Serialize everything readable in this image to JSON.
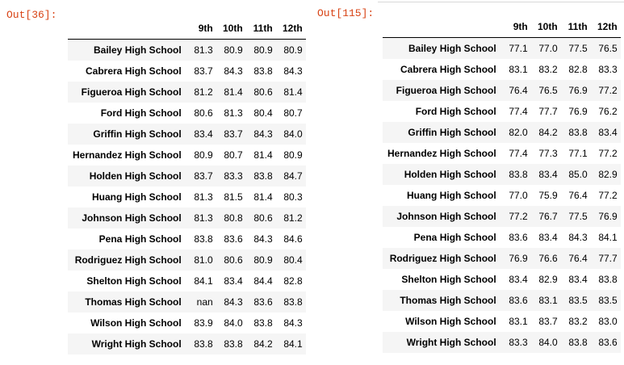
{
  "cells": [
    {
      "prompt": "Out[36]:",
      "columns": [
        "9th",
        "10th",
        "11th",
        "12th"
      ],
      "rows": [
        {
          "school": "Bailey High School",
          "values": [
            "81.3",
            "80.9",
            "80.9",
            "80.9"
          ]
        },
        {
          "school": "Cabrera High School",
          "values": [
            "83.7",
            "84.3",
            "83.8",
            "84.3"
          ]
        },
        {
          "school": "Figueroa High School",
          "values": [
            "81.2",
            "81.4",
            "80.6",
            "81.4"
          ]
        },
        {
          "school": "Ford High School",
          "values": [
            "80.6",
            "81.3",
            "80.4",
            "80.7"
          ]
        },
        {
          "school": "Griffin High School",
          "values": [
            "83.4",
            "83.7",
            "84.3",
            "84.0"
          ]
        },
        {
          "school": "Hernandez High School",
          "values": [
            "80.9",
            "80.7",
            "81.4",
            "80.9"
          ]
        },
        {
          "school": "Holden High School",
          "values": [
            "83.7",
            "83.3",
            "83.8",
            "84.7"
          ]
        },
        {
          "school": "Huang High School",
          "values": [
            "81.3",
            "81.5",
            "81.4",
            "80.3"
          ]
        },
        {
          "school": "Johnson High School",
          "values": [
            "81.3",
            "80.8",
            "80.6",
            "81.2"
          ]
        },
        {
          "school": "Pena High School",
          "values": [
            "83.8",
            "83.6",
            "84.3",
            "84.6"
          ]
        },
        {
          "school": "Rodriguez High School",
          "values": [
            "81.0",
            "80.6",
            "80.9",
            "80.4"
          ]
        },
        {
          "school": "Shelton High School",
          "values": [
            "84.1",
            "83.4",
            "84.4",
            "82.8"
          ]
        },
        {
          "school": "Thomas High School",
          "values": [
            "nan",
            "84.3",
            "83.6",
            "83.8"
          ]
        },
        {
          "school": "Wilson High School",
          "values": [
            "83.9",
            "84.0",
            "83.8",
            "84.3"
          ]
        },
        {
          "school": "Wright High School",
          "values": [
            "83.8",
            "83.8",
            "84.2",
            "84.1"
          ]
        }
      ]
    },
    {
      "prompt": "Out[115]:",
      "columns": [
        "9th",
        "10th",
        "11th",
        "12th"
      ],
      "rows": [
        {
          "school": "Bailey High School",
          "values": [
            "77.1",
            "77.0",
            "77.5",
            "76.5"
          ]
        },
        {
          "school": "Cabrera High School",
          "values": [
            "83.1",
            "83.2",
            "82.8",
            "83.3"
          ]
        },
        {
          "school": "Figueroa High School",
          "values": [
            "76.4",
            "76.5",
            "76.9",
            "77.2"
          ]
        },
        {
          "school": "Ford High School",
          "values": [
            "77.4",
            "77.7",
            "76.9",
            "76.2"
          ]
        },
        {
          "school": "Griffin High School",
          "values": [
            "82.0",
            "84.2",
            "83.8",
            "83.4"
          ]
        },
        {
          "school": "Hernandez High School",
          "values": [
            "77.4",
            "77.3",
            "77.1",
            "77.2"
          ]
        },
        {
          "school": "Holden High School",
          "values": [
            "83.8",
            "83.4",
            "85.0",
            "82.9"
          ]
        },
        {
          "school": "Huang High School",
          "values": [
            "77.0",
            "75.9",
            "76.4",
            "77.2"
          ]
        },
        {
          "school": "Johnson High School",
          "values": [
            "77.2",
            "76.7",
            "77.5",
            "76.9"
          ]
        },
        {
          "school": "Pena High School",
          "values": [
            "83.6",
            "83.4",
            "84.3",
            "84.1"
          ]
        },
        {
          "school": "Rodriguez High School",
          "values": [
            "76.9",
            "76.6",
            "76.4",
            "77.7"
          ]
        },
        {
          "school": "Shelton High School",
          "values": [
            "83.4",
            "82.9",
            "83.4",
            "83.8"
          ]
        },
        {
          "school": "Thomas High School",
          "values": [
            "83.6",
            "83.1",
            "83.5",
            "83.5"
          ]
        },
        {
          "school": "Wilson High School",
          "values": [
            "83.1",
            "83.7",
            "83.2",
            "83.0"
          ]
        },
        {
          "school": "Wright High School",
          "values": [
            "83.3",
            "84.0",
            "83.8",
            "83.6"
          ]
        }
      ]
    }
  ]
}
